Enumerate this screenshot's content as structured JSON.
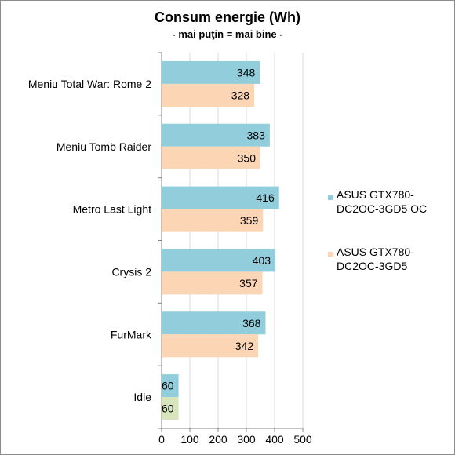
{
  "chart_data": {
    "type": "bar",
    "orientation": "horizontal",
    "title": "Consum energie (Wh)",
    "subtitle": "- mai puţin = mai bine -",
    "categories": [
      "Meniu Total War: Rome 2",
      "Meniu Tomb Raider",
      "Metro Last Light",
      "Crysis 2",
      "FurMark",
      "Idle"
    ],
    "series": [
      {
        "name": "ASUS GTX780-DC2OC-3GD5 OC",
        "legend_lines": [
          "ASUS GTX780-",
          "DC2OC-3GD5 OC"
        ],
        "color": "#92cddc",
        "values": [
          348,
          383,
          416,
          403,
          368,
          60
        ]
      },
      {
        "name": "ASUS GTX780-DC2OC-3GD5",
        "legend_lines": [
          "ASUS GTX780-",
          "DC2OC-3GD5"
        ],
        "color": "#fcd5b4",
        "values": [
          328,
          350,
          359,
          357,
          342,
          60
        ]
      }
    ],
    "highlight_color": "#d7e4bc",
    "highlight_point": {
      "series": 1,
      "category": 5
    },
    "xlim": [
      0,
      500
    ],
    "xticks": [
      0,
      100,
      200,
      300,
      400,
      500
    ],
    "xlabel": "",
    "ylabel": "",
    "grid": true,
    "grid_color": "#d9d9d9",
    "legend_position": "right"
  }
}
